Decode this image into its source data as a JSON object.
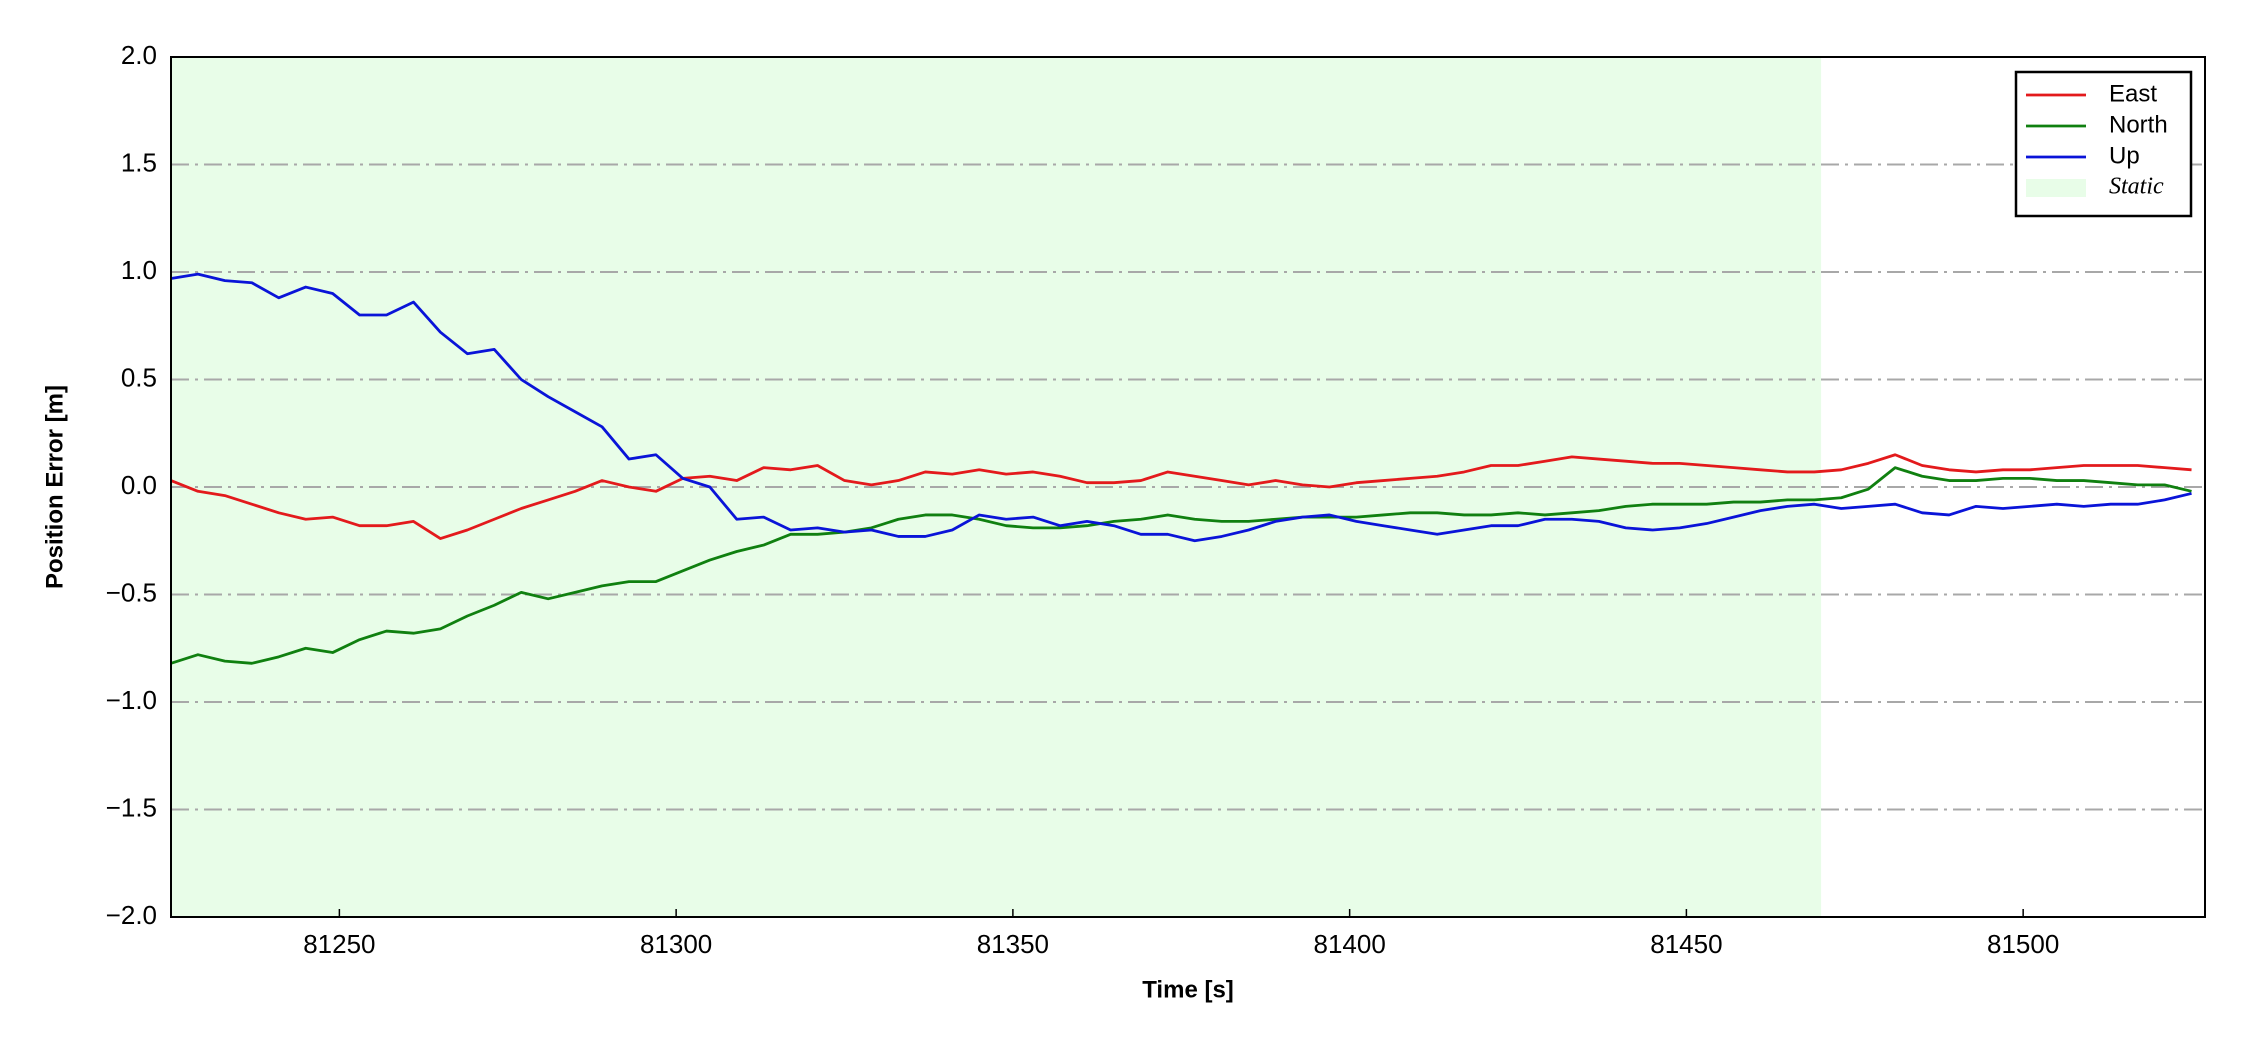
{
  "chart_data": {
    "type": "line",
    "xlabel": "Time [s]",
    "ylabel": "Position Error [m]",
    "x": [
      81225,
      81229,
      81233,
      81237,
      81241,
      81245,
      81249,
      81253,
      81257,
      81261,
      81265,
      81269,
      81273,
      81277,
      81281,
      81285,
      81289,
      81293,
      81297,
      81301,
      81305,
      81309,
      81313,
      81317,
      81321,
      81325,
      81329,
      81333,
      81337,
      81341,
      81345,
      81349,
      81353,
      81357,
      81361,
      81365,
      81369,
      81373,
      81377,
      81381,
      81385,
      81389,
      81393,
      81397,
      81401,
      81405,
      81409,
      81413,
      81417,
      81421,
      81425,
      81429,
      81433,
      81437,
      81441,
      81445,
      81449,
      81453,
      81457,
      81461,
      81465,
      81469,
      81473,
      81477,
      81481,
      81485,
      81489,
      81493,
      81497,
      81501,
      81505,
      81509,
      81513,
      81517,
      81521,
      81525
    ],
    "series": [
      {
        "name": "East",
        "color": "#e31a1c",
        "values": [
          0.03,
          -0.02,
          -0.04,
          -0.08,
          -0.12,
          -0.15,
          -0.14,
          -0.18,
          -0.18,
          -0.16,
          -0.24,
          -0.2,
          -0.15,
          -0.1,
          -0.06,
          -0.02,
          0.03,
          0.0,
          -0.02,
          0.04,
          0.05,
          0.03,
          0.09,
          0.08,
          0.1,
          0.03,
          0.01,
          0.03,
          0.07,
          0.06,
          0.08,
          0.06,
          0.07,
          0.05,
          0.02,
          0.02,
          0.03,
          0.07,
          0.05,
          0.03,
          0.01,
          0.03,
          0.01,
          0.0,
          0.02,
          0.03,
          0.04,
          0.05,
          0.07,
          0.1,
          0.1,
          0.12,
          0.14,
          0.13,
          0.12,
          0.11,
          0.11,
          0.1,
          0.09,
          0.08,
          0.07,
          0.07,
          0.08,
          0.11,
          0.15,
          0.1,
          0.08,
          0.07,
          0.08,
          0.08,
          0.09,
          0.1,
          0.1,
          0.1,
          0.09,
          0.08
        ]
      },
      {
        "name": "North",
        "color": "#108010",
        "values": [
          -0.82,
          -0.78,
          -0.81,
          -0.82,
          -0.79,
          -0.75,
          -0.77,
          -0.71,
          -0.67,
          -0.68,
          -0.66,
          -0.6,
          -0.55,
          -0.49,
          -0.52,
          -0.49,
          -0.46,
          -0.44,
          -0.44,
          -0.39,
          -0.34,
          -0.3,
          -0.27,
          -0.22,
          -0.22,
          -0.21,
          -0.19,
          -0.15,
          -0.13,
          -0.13,
          -0.15,
          -0.18,
          -0.19,
          -0.19,
          -0.18,
          -0.16,
          -0.15,
          -0.13,
          -0.15,
          -0.16,
          -0.16,
          -0.15,
          -0.14,
          -0.14,
          -0.14,
          -0.13,
          -0.12,
          -0.12,
          -0.13,
          -0.13,
          -0.12,
          -0.13,
          -0.12,
          -0.11,
          -0.09,
          -0.08,
          -0.08,
          -0.08,
          -0.07,
          -0.07,
          -0.06,
          -0.06,
          -0.05,
          -0.01,
          0.09,
          0.05,
          0.03,
          0.03,
          0.04,
          0.04,
          0.03,
          0.03,
          0.02,
          0.01,
          0.01,
          -0.02
        ]
      },
      {
        "name": "Up",
        "color": "#0a14d8",
        "values": [
          0.97,
          0.99,
          0.96,
          0.95,
          0.88,
          0.93,
          0.9,
          0.8,
          0.8,
          0.86,
          0.72,
          0.62,
          0.64,
          0.5,
          0.42,
          0.35,
          0.28,
          0.13,
          0.15,
          0.04,
          0.0,
          -0.15,
          -0.14,
          -0.2,
          -0.19,
          -0.21,
          -0.2,
          -0.23,
          -0.23,
          -0.2,
          -0.13,
          -0.15,
          -0.14,
          -0.18,
          -0.16,
          -0.18,
          -0.22,
          -0.22,
          -0.25,
          -0.23,
          -0.2,
          -0.16,
          -0.14,
          -0.13,
          -0.16,
          -0.18,
          -0.2,
          -0.22,
          -0.2,
          -0.18,
          -0.18,
          -0.15,
          -0.15,
          -0.16,
          -0.19,
          -0.2,
          -0.19,
          -0.17,
          -0.14,
          -0.11,
          -0.09,
          -0.08,
          -0.1,
          -0.09,
          -0.08,
          -0.12,
          -0.13,
          -0.09,
          -0.1,
          -0.09,
          -0.08,
          -0.09,
          -0.08,
          -0.08,
          -0.06,
          -0.03
        ]
      }
    ],
    "shaded_region": {
      "name": "Static",
      "color": "#e8fde8",
      "xlim": [
        81225,
        81470
      ]
    },
    "xlim": [
      81225,
      81527
    ],
    "ylim": [
      -2,
      2
    ],
    "xticks": [
      81250,
      81300,
      81350,
      81400,
      81450,
      81500
    ],
    "yticks": [
      {
        "value": -2,
        "label": "−2.0"
      },
      {
        "value": -1.5,
        "label": "−1.5"
      },
      {
        "value": -1,
        "label": "−1.0"
      },
      {
        "value": -0.5,
        "label": "−0.5"
      },
      {
        "value": 0,
        "label": "0.0"
      },
      0.5,
      {
        "value": 1,
        "label": "1.0"
      },
      1.5,
      {
        "value": 2,
        "label": "2.0"
      }
    ],
    "grid": "y",
    "legend": "upper right"
  }
}
